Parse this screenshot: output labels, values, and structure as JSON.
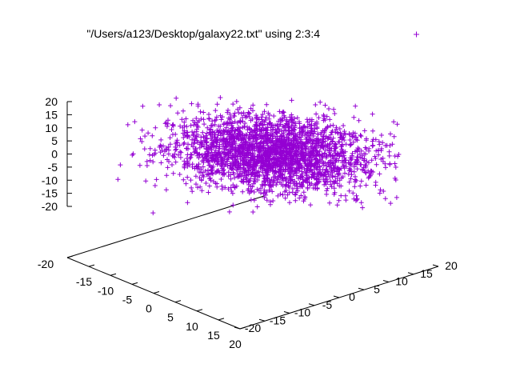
{
  "chart_data": {
    "type": "scatter",
    "subtype": "3d-splot",
    "series": [
      {
        "name": "\"/Users/a123/Desktop/galaxy22.txt\" using 2:3:4",
        "marker": "+",
        "color": "#9400d3",
        "note": "dense ellipsoidal point cloud centered at origin; spread approx ±20 in x and y, ±8 in z core with outliers to ±20"
      }
    ],
    "axes": {
      "x": {
        "range": [
          -20,
          20
        ],
        "ticks": [
          "-20",
          "-15",
          "-10",
          "-5",
          "0",
          "5",
          "10",
          "15",
          "20"
        ]
      },
      "y": {
        "range": [
          -20,
          20
        ],
        "ticks": [
          "-20",
          "-15",
          "-10",
          "-5",
          "0",
          "5",
          "10",
          "15",
          "20"
        ]
      },
      "z": {
        "range": [
          -20,
          20
        ],
        "ticks": [
          "-20",
          "-15",
          "-10",
          "-5",
          "0",
          "5",
          "10",
          "15",
          "20"
        ]
      }
    },
    "legend_position": "top-right",
    "grid": false
  }
}
